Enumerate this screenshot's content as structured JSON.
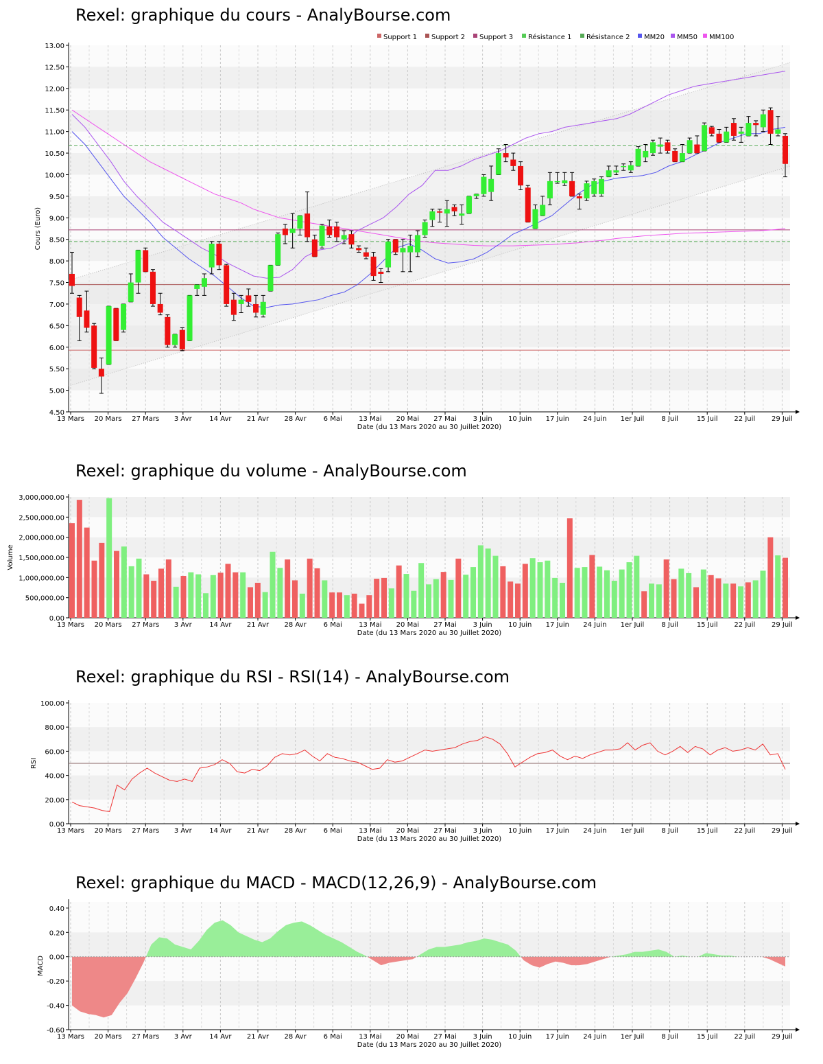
{
  "x_ticks": [
    "13 Mars",
    "20 Mars",
    "27 Mars",
    "3 Avr",
    "14 Avr",
    "21 Avr",
    "28 Avr",
    "6 Mai",
    "13 Mai",
    "20 Mai",
    "27 Mai",
    "3 Juin",
    "10 Juin",
    "17 Juin",
    "24 Juin",
    "1er Juil",
    "8 Juil",
    "15 Juil",
    "22 Juil",
    "29 Juil"
  ],
  "colors": {
    "up": "#33ee33",
    "down": "#ee1111",
    "vol_up": "#7fef7f",
    "vol_down": "#ef6060",
    "mm20": "#5555ee",
    "mm50": "#aa55ee",
    "mm100": "#ee55ee",
    "support": "#cc6666",
    "resistance": "#55aa55",
    "rsi_line": "#ee3333",
    "macd_pos": "#99ee99",
    "macd_neg": "#ee8888"
  },
  "chart_data": [
    {
      "type": "candlestick",
      "title": "Rexel: graphique du cours - AnalyBourse.com",
      "xlabel": "Date (du 13 Mars 2020 au 30 Juillet 2020)",
      "ylabel": "Cours (Euro)",
      "ylim": [
        4.5,
        13.0
      ],
      "y_ticks": [
        "4.50",
        "5.00",
        "5.50",
        "6.00",
        "6.50",
        "7.00",
        "7.50",
        "8.00",
        "8.50",
        "9.00",
        "9.50",
        "10.00",
        "10.50",
        "11.00",
        "11.50",
        "12.00",
        "12.50",
        "13.00"
      ],
      "legend": [
        "Support 1",
        "Support 2",
        "Support 3",
        "Résistance 1",
        "Résistance 2",
        "MM20",
        "MM50",
        "MM100"
      ],
      "legend_position": "top-right",
      "levels": {
        "support_1": 5.93,
        "support_2": 7.45,
        "support_3": 8.72,
        "resistance_1": 8.45,
        "resistance_2": 10.68
      },
      "channel": {
        "lower_start": 5.1,
        "lower_end": 10.2,
        "upper_start": 7.55,
        "upper_end": 12.6
      },
      "candles": [
        [
          7.7,
          8.2,
          7.25,
          7.42
        ],
        [
          7.15,
          7.2,
          6.15,
          6.7
        ],
        [
          6.85,
          7.3,
          6.35,
          6.45
        ],
        [
          6.5,
          6.55,
          5.5,
          5.52
        ],
        [
          5.5,
          5.75,
          4.93,
          5.32
        ],
        [
          5.6,
          6.95,
          5.6,
          6.95
        ],
        [
          6.9,
          6.9,
          6.15,
          6.15
        ],
        [
          6.4,
          7.0,
          6.35,
          7.0
        ],
        [
          7.05,
          7.7,
          7.05,
          7.5
        ],
        [
          7.5,
          8.25,
          7.25,
          8.25
        ],
        [
          8.25,
          8.3,
          7.75,
          7.75
        ],
        [
          7.75,
          7.8,
          6.95,
          7.0
        ],
        [
          7.0,
          7.25,
          6.75,
          6.8
        ],
        [
          6.7,
          6.75,
          6.0,
          6.05
        ],
        [
          6.05,
          6.3,
          6.0,
          6.3
        ],
        [
          6.4,
          6.45,
          5.92,
          5.95
        ],
        [
          6.15,
          7.2,
          6.15,
          7.2
        ],
        [
          7.35,
          7.45,
          7.2,
          7.45
        ],
        [
          7.4,
          7.7,
          7.2,
          7.6
        ],
        [
          7.85,
          8.45,
          7.7,
          8.4
        ],
        [
          8.4,
          8.45,
          7.8,
          7.9
        ],
        [
          7.9,
          7.92,
          6.95,
          7.0
        ],
        [
          7.1,
          7.25,
          6.62,
          6.75
        ],
        [
          7.0,
          7.2,
          6.8,
          7.1
        ],
        [
          7.2,
          7.35,
          6.95,
          7.05
        ],
        [
          7.0,
          7.2,
          6.7,
          6.8
        ],
        [
          6.75,
          7.2,
          6.7,
          7.05
        ],
        [
          7.3,
          7.9,
          7.3,
          7.9
        ],
        [
          7.9,
          8.65,
          7.9,
          8.62
        ],
        [
          8.75,
          8.85,
          8.4,
          8.6
        ],
        [
          8.65,
          9.1,
          8.3,
          8.75
        ],
        [
          8.75,
          9.05,
          8.6,
          9.05
        ],
        [
          9.1,
          9.6,
          8.45,
          8.55
        ],
        [
          8.5,
          8.6,
          8.1,
          8.1
        ],
        [
          8.35,
          8.85,
          8.3,
          8.82
        ],
        [
          8.8,
          8.95,
          8.55,
          8.6
        ],
        [
          8.8,
          8.9,
          8.45,
          8.55
        ],
        [
          8.5,
          8.7,
          8.4,
          8.6
        ],
        [
          8.62,
          8.7,
          8.3,
          8.38
        ],
        [
          8.3,
          8.35,
          8.2,
          8.25
        ],
        [
          8.2,
          8.3,
          8.05,
          8.1
        ],
        [
          8.1,
          8.2,
          7.55,
          7.65
        ],
        [
          7.75,
          7.82,
          7.5,
          7.7
        ],
        [
          7.85,
          8.5,
          7.75,
          8.45
        ],
        [
          8.5,
          8.5,
          8.15,
          8.2
        ],
        [
          8.2,
          8.5,
          7.75,
          8.3
        ],
        [
          8.2,
          8.6,
          7.75,
          8.35
        ],
        [
          8.2,
          8.7,
          8.1,
          8.6
        ],
        [
          8.6,
          8.95,
          8.55,
          8.9
        ],
        [
          8.95,
          9.2,
          8.8,
          9.15
        ],
        [
          9.15,
          9.2,
          8.9,
          9.12
        ],
        [
          9.1,
          9.4,
          8.8,
          9.2
        ],
        [
          9.25,
          9.3,
          9.05,
          9.15
        ],
        [
          9.05,
          9.3,
          8.85,
          9.1
        ],
        [
          9.1,
          9.5,
          9.1,
          9.5
        ],
        [
          9.5,
          9.55,
          9.45,
          9.55
        ],
        [
          9.55,
          10.0,
          9.5,
          9.95
        ],
        [
          9.6,
          10.2,
          9.4,
          9.9
        ],
        [
          10.0,
          10.6,
          10.0,
          10.5
        ],
        [
          10.5,
          10.7,
          10.3,
          10.4
        ],
        [
          10.35,
          10.5,
          10.1,
          10.2
        ],
        [
          10.2,
          10.3,
          9.65,
          9.75
        ],
        [
          9.7,
          9.75,
          8.9,
          8.9
        ],
        [
          8.75,
          9.3,
          8.75,
          9.2
        ],
        [
          9.05,
          9.5,
          9.05,
          9.3
        ],
        [
          9.45,
          10.05,
          9.3,
          9.85
        ],
        [
          9.85,
          10.05,
          9.8,
          9.85
        ],
        [
          9.8,
          10.05,
          9.75,
          9.87
        ],
        [
          9.85,
          10.05,
          9.5,
          9.5
        ],
        [
          9.5,
          9.55,
          9.2,
          9.45
        ],
        [
          9.45,
          9.85,
          9.4,
          9.8
        ],
        [
          9.55,
          9.9,
          9.5,
          9.85
        ],
        [
          9.55,
          9.95,
          9.5,
          9.9
        ],
        [
          9.95,
          10.2,
          9.95,
          10.1
        ],
        [
          10.05,
          10.2,
          10.0,
          10.1
        ],
        [
          10.2,
          10.25,
          10.1,
          10.2
        ],
        [
          10.1,
          10.3,
          10.05,
          10.22
        ],
        [
          10.2,
          10.65,
          10.2,
          10.6
        ],
        [
          10.4,
          10.7,
          10.3,
          10.55
        ],
        [
          10.5,
          10.8,
          10.45,
          10.75
        ],
        [
          10.65,
          10.85,
          10.5,
          10.7
        ],
        [
          10.75,
          10.8,
          10.5,
          10.55
        ],
        [
          10.55,
          10.6,
          10.3,
          10.3
        ],
        [
          10.3,
          10.7,
          10.3,
          10.5
        ],
        [
          10.5,
          10.85,
          10.5,
          10.8
        ],
        [
          10.7,
          10.9,
          10.5,
          10.5
        ],
        [
          10.55,
          11.2,
          10.55,
          11.15
        ],
        [
          11.1,
          11.12,
          10.9,
          10.95
        ],
        [
          10.95,
          11.05,
          10.75,
          10.75
        ],
        [
          10.75,
          11.1,
          10.75,
          11.0
        ],
        [
          11.2,
          11.3,
          10.8,
          10.9
        ],
        [
          10.95,
          11.1,
          10.75,
          11.0
        ],
        [
          10.9,
          11.35,
          10.9,
          11.2
        ],
        [
          11.2,
          11.25,
          10.9,
          11.15
        ],
        [
          11.1,
          11.5,
          11.0,
          11.4
        ],
        [
          11.5,
          11.55,
          10.7,
          10.95
        ],
        [
          10.95,
          11.35,
          10.9,
          11.05
        ],
        [
          10.9,
          10.95,
          9.95,
          10.25
        ]
      ],
      "mm20": [
        11.0,
        10.7,
        10.3,
        9.9,
        9.5,
        9.2,
        8.9,
        8.55,
        8.3,
        8.05,
        7.85,
        7.65,
        7.4,
        7.15,
        6.95,
        6.92,
        6.98,
        7.0,
        7.05,
        7.1,
        7.2,
        7.28,
        7.45,
        7.7,
        8.0,
        8.3,
        8.4,
        8.25,
        8.05,
        7.95,
        7.98,
        8.05,
        8.2,
        8.4,
        8.62,
        8.75,
        8.9,
        9.05,
        9.3,
        9.55,
        9.75,
        9.85,
        9.92,
        9.95,
        9.98,
        10.05,
        10.2,
        10.3,
        10.45,
        10.6,
        10.75,
        10.85,
        10.95,
        10.95,
        11.05,
        11.1
      ],
      "mm50": [
        11.4,
        11.1,
        10.7,
        10.3,
        9.85,
        9.5,
        9.2,
        8.9,
        8.7,
        8.5,
        8.3,
        8.15,
        7.95,
        7.8,
        7.65,
        7.6,
        7.62,
        7.8,
        8.1,
        8.25,
        8.3,
        8.45,
        8.7,
        8.85,
        9.0,
        9.25,
        9.55,
        9.75,
        10.1,
        10.1,
        10.2,
        10.35,
        10.45,
        10.55,
        10.7,
        10.85,
        10.95,
        11.0,
        11.1,
        11.15,
        11.2,
        11.25,
        11.3,
        11.4,
        11.55,
        11.7,
        11.85,
        11.95,
        12.05,
        12.1,
        12.15,
        12.2,
        12.25,
        12.3,
        12.35,
        12.4
      ],
      "mm100": [
        11.5,
        11.3,
        11.1,
        10.9,
        10.7,
        10.5,
        10.3,
        10.15,
        10.0,
        9.85,
        9.7,
        9.55,
        9.45,
        9.35,
        9.2,
        9.1,
        9.0,
        8.95,
        8.9,
        8.85,
        8.8,
        8.75,
        8.7,
        8.65,
        8.6,
        8.55,
        8.5,
        8.45,
        8.42,
        8.4,
        8.38,
        8.36,
        8.35,
        8.35,
        8.35,
        8.36,
        8.37,
        8.38,
        8.4,
        8.42,
        8.45,
        8.48,
        8.52,
        8.55,
        8.58,
        8.6,
        8.62,
        8.64,
        8.65,
        8.66,
        8.67,
        8.68,
        8.69,
        8.7,
        8.72,
        8.75
      ]
    },
    {
      "type": "bar",
      "title": "Rexel: graphique du volume - AnalyBourse.com",
      "xlabel": "Date (du 13 Mars 2020 au 30 Juillet 2020)",
      "ylabel": "Volume",
      "ylim": [
        0,
        3000000
      ],
      "y_ticks": [
        "0.00",
        "500,000.00",
        "1,000,000.00",
        "1,500,000.00",
        "2,000,000.00",
        "2,500,000.00",
        "3,000,000.00"
      ],
      "values": [
        2350000,
        2930000,
        2240000,
        1420000,
        1860000,
        2970000,
        1660000,
        1770000,
        1280000,
        1470000,
        1080000,
        920000,
        1220000,
        1450000,
        770000,
        1040000,
        1130000,
        1080000,
        610000,
        1060000,
        1120000,
        1340000,
        1130000,
        1130000,
        760000,
        870000,
        640000,
        1640000,
        1240000,
        1450000,
        930000,
        600000,
        1470000,
        1230000,
        930000,
        630000,
        630000,
        560000,
        600000,
        350000,
        560000,
        970000,
        990000,
        730000,
        1300000,
        1090000,
        670000,
        1360000,
        830000,
        960000,
        1140000,
        940000,
        1470000,
        1070000,
        1260000,
        1800000,
        1720000,
        1540000,
        1280000,
        900000,
        850000,
        1340000,
        1480000,
        1380000,
        1420000,
        990000,
        870000,
        2470000,
        1240000,
        1260000,
        1560000,
        1270000,
        1180000,
        920000,
        1200000,
        1380000,
        1540000,
        660000,
        850000,
        830000,
        1450000,
        960000,
        1220000,
        1110000,
        760000,
        1200000,
        1060000,
        980000,
        850000,
        850000,
        780000,
        880000,
        930000,
        1170000,
        2000000,
        1550000,
        1490000
      ],
      "up": [
        false,
        false,
        false,
        false,
        false,
        true,
        false,
        true,
        true,
        true,
        false,
        false,
        false,
        false,
        true,
        false,
        true,
        true,
        true,
        true,
        false,
        false,
        false,
        true,
        false,
        false,
        true,
        true,
        true,
        false,
        false,
        true,
        false,
        false,
        true,
        false,
        false,
        true,
        false,
        false,
        false,
        false,
        false,
        true,
        false,
        true,
        true,
        true,
        true,
        true,
        false,
        true,
        false,
        true,
        true,
        true,
        true,
        true,
        false,
        false,
        false,
        false,
        true,
        true,
        true,
        true,
        true,
        false,
        true,
        true,
        false,
        true,
        true,
        true,
        true,
        true,
        true,
        false,
        true,
        true,
        false,
        false,
        true,
        true,
        false,
        true,
        false,
        false,
        true,
        false,
        true,
        false,
        true,
        true,
        false,
        true,
        false
      ]
    },
    {
      "type": "line",
      "title": "Rexel: graphique du RSI - RSI(14) - AnalyBourse.com",
      "xlabel": "Date (du 13 Mars 2020 au 30 Juillet 2020)",
      "ylabel": "RSI",
      "ylim": [
        0,
        100
      ],
      "y_ticks": [
        "0.00",
        "20.00",
        "40.00",
        "60.00",
        "80.00",
        "100.00"
      ],
      "reference_line": 50,
      "values": [
        18,
        15,
        14,
        13,
        11,
        10,
        32,
        28,
        37,
        42,
        46,
        42,
        39,
        36,
        35,
        37,
        35,
        46,
        47,
        49,
        53,
        50,
        43,
        42,
        45,
        44,
        48,
        55,
        58,
        57,
        58,
        61,
        56,
        52,
        58,
        55,
        54,
        52,
        51,
        48,
        45,
        46,
        53,
        51,
        52,
        55,
        58,
        61,
        60,
        61,
        62,
        63,
        66,
        68,
        69,
        72,
        70,
        66,
        58,
        47,
        51,
        55,
        58,
        59,
        61,
        56,
        53,
        56,
        54,
        57,
        59,
        61,
        61,
        62,
        67,
        61,
        65,
        67,
        60,
        57,
        60,
        64,
        59,
        64,
        62,
        57,
        61,
        63,
        60,
        61,
        63,
        61,
        66,
        57,
        58,
        45
      ],
      "axis_index_max": 96
    },
    {
      "type": "area",
      "title": "Rexel: graphique du MACD - MACD(12,26,9) - AnalyBourse.com",
      "xlabel": "Date (du 13 Mars 2020 au 30 Juillet 2020)",
      "ylabel": "MACD",
      "ylim": [
        -0.6,
        0.45
      ],
      "y_ticks": [
        "-0.60",
        "-0.40",
        "-0.20",
        "0.00",
        "0.20",
        "0.40"
      ],
      "y_tick_values": [
        -0.6,
        -0.4,
        -0.2,
        0.0,
        0.2,
        0.4
      ],
      "values": [
        -0.4,
        -0.45,
        -0.47,
        -0.48,
        -0.5,
        -0.48,
        -0.38,
        -0.3,
        -0.18,
        -0.05,
        0.1,
        0.16,
        0.15,
        0.1,
        0.08,
        0.06,
        0.13,
        0.22,
        0.28,
        0.3,
        0.26,
        0.2,
        0.17,
        0.14,
        0.12,
        0.15,
        0.21,
        0.26,
        0.28,
        0.29,
        0.26,
        0.22,
        0.18,
        0.15,
        0.12,
        0.08,
        0.04,
        0.01,
        -0.03,
        -0.07,
        -0.05,
        -0.04,
        -0.03,
        -0.02,
        0.02,
        0.06,
        0.08,
        0.08,
        0.09,
        0.1,
        0.12,
        0.13,
        0.15,
        0.14,
        0.12,
        0.1,
        0.05,
        -0.03,
        -0.07,
        -0.09,
        -0.06,
        -0.04,
        -0.05,
        -0.07,
        -0.07,
        -0.06,
        -0.04,
        -0.02,
        0.0,
        0.01,
        0.02,
        0.04,
        0.04,
        0.05,
        0.06,
        0.04,
        0.0,
        0.01,
        0.0,
        0.0,
        0.03,
        0.02,
        0.01,
        0.01,
        0.0,
        0.0,
        0.0,
        0.0,
        -0.02,
        -0.05,
        -0.08
      ],
      "axis_index_max": 96
    }
  ]
}
